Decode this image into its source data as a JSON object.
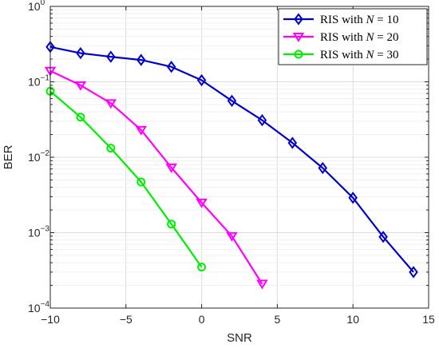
{
  "chart_data": {
    "type": "line",
    "xlabel": "SNR",
    "ylabel": "BER",
    "xlim": [
      -10,
      15
    ],
    "ylim": [
      0.0001,
      1
    ],
    "yscale": "log",
    "grid": true,
    "legend_position": "top-right",
    "x_ticks": [
      -10,
      -5,
      0,
      5,
      10,
      15
    ],
    "x_tick_labels": [
      "−10",
      "−5",
      "0",
      "5",
      "10",
      "15"
    ],
    "y_ticks": [
      {
        "value": 0.0001,
        "base": "10",
        "exp": "−4"
      },
      {
        "value": 0.001,
        "base": "10",
        "exp": "−3"
      },
      {
        "value": 0.01,
        "base": "10",
        "exp": "−2"
      },
      {
        "value": 0.1,
        "base": "10",
        "exp": "−1"
      },
      {
        "value": 1,
        "base": "10",
        "exp": "0"
      }
    ],
    "series": [
      {
        "name": "RIS with N = 10",
        "legend_prefix": "RIS with ",
        "legend_var": "N",
        "legend_suffix": " = 10",
        "color": "#0000cc",
        "marker": "diamond",
        "x": [
          -10,
          -8,
          -6,
          -4,
          -2,
          0,
          2,
          4,
          6,
          8,
          10,
          12,
          14
        ],
        "y": [
          0.29,
          0.24,
          0.215,
          0.195,
          0.158,
          0.105,
          0.056,
          0.031,
          0.0155,
          0.0072,
          0.0029,
          0.00088,
          0.0003
        ]
      },
      {
        "name": "RIS with N = 20",
        "legend_prefix": "RIS with ",
        "legend_var": "N",
        "legend_suffix": " = 20",
        "color": "#ff00ff",
        "marker": "triangle-down",
        "x": [
          -10,
          -8,
          -6,
          -4,
          -2,
          0,
          2,
          4
        ],
        "y": [
          0.14,
          0.09,
          0.052,
          0.023,
          0.0073,
          0.0025,
          0.0009,
          0.00021
        ]
      },
      {
        "name": "RIS with N = 30",
        "legend_prefix": "RIS with ",
        "legend_var": "N",
        "legend_suffix": " = 30",
        "color": "#00ee00",
        "marker": "circle",
        "x": [
          -10,
          -8,
          -6,
          -4,
          -2,
          0
        ],
        "y": [
          0.075,
          0.034,
          0.0132,
          0.0047,
          0.0013,
          0.00035
        ]
      }
    ]
  }
}
